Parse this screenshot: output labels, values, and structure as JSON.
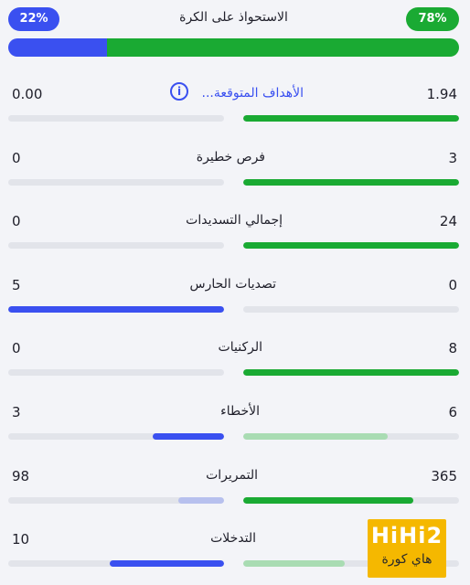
{
  "possession": {
    "title": "الاستحواذ على الكرة",
    "away_pct_label": "22%",
    "home_pct_label": "78%",
    "away_fraction": 0.22,
    "away_color": "#3a50f0",
    "home_color": "#1aaa33"
  },
  "stats": [
    {
      "label": "الأهداف المتوقعة...",
      "left": "0.00",
      "right": "1.94",
      "left_fill": 0,
      "right_fill": 1.0,
      "left_color": "#3a50f0",
      "right_color": "#1aaa33",
      "link": true,
      "icon": "info-icon"
    },
    {
      "label": "فرص خطيرة",
      "left": "0",
      "right": "3",
      "left_fill": 0,
      "right_fill": 1.0,
      "left_color": "#3a50f0",
      "right_color": "#1aaa33"
    },
    {
      "label": "إجمالي التسديدات",
      "left": "0",
      "right": "24",
      "left_fill": 0,
      "right_fill": 1.0,
      "left_color": "#3a50f0",
      "right_color": "#1aaa33"
    },
    {
      "label": "تصديات الحارس",
      "left": "5",
      "right": "0",
      "left_fill": 1.0,
      "right_fill": 0,
      "left_color": "#3a50f0",
      "right_color": "#1aaa33"
    },
    {
      "label": "الركنيات",
      "left": "0",
      "right": "8",
      "left_fill": 0,
      "right_fill": 1.0,
      "left_color": "#3a50f0",
      "right_color": "#1aaa33"
    },
    {
      "label": "الأخطاء",
      "left": "3",
      "right": "6",
      "left_fill": 0.33,
      "right_fill": 0.67,
      "left_color": "#3a50f0",
      "right_color": "#a9dcb3"
    },
    {
      "label": "التمريرات",
      "left": "98",
      "right": "365",
      "left_fill": 0.21,
      "right_fill": 0.79,
      "left_color": "#b7c0ee",
      "right_color": "#1aaa33"
    },
    {
      "label": "التدخلات",
      "left": "10",
      "right": "",
      "left_fill": 0.53,
      "right_fill": 0.47,
      "left_color": "#3a50f0",
      "right_color": "#a9dcb3"
    }
  ],
  "watermark": {
    "brand": "HiHi2",
    "brand_ar": "هاي كورة",
    "color": "#f5b800"
  }
}
